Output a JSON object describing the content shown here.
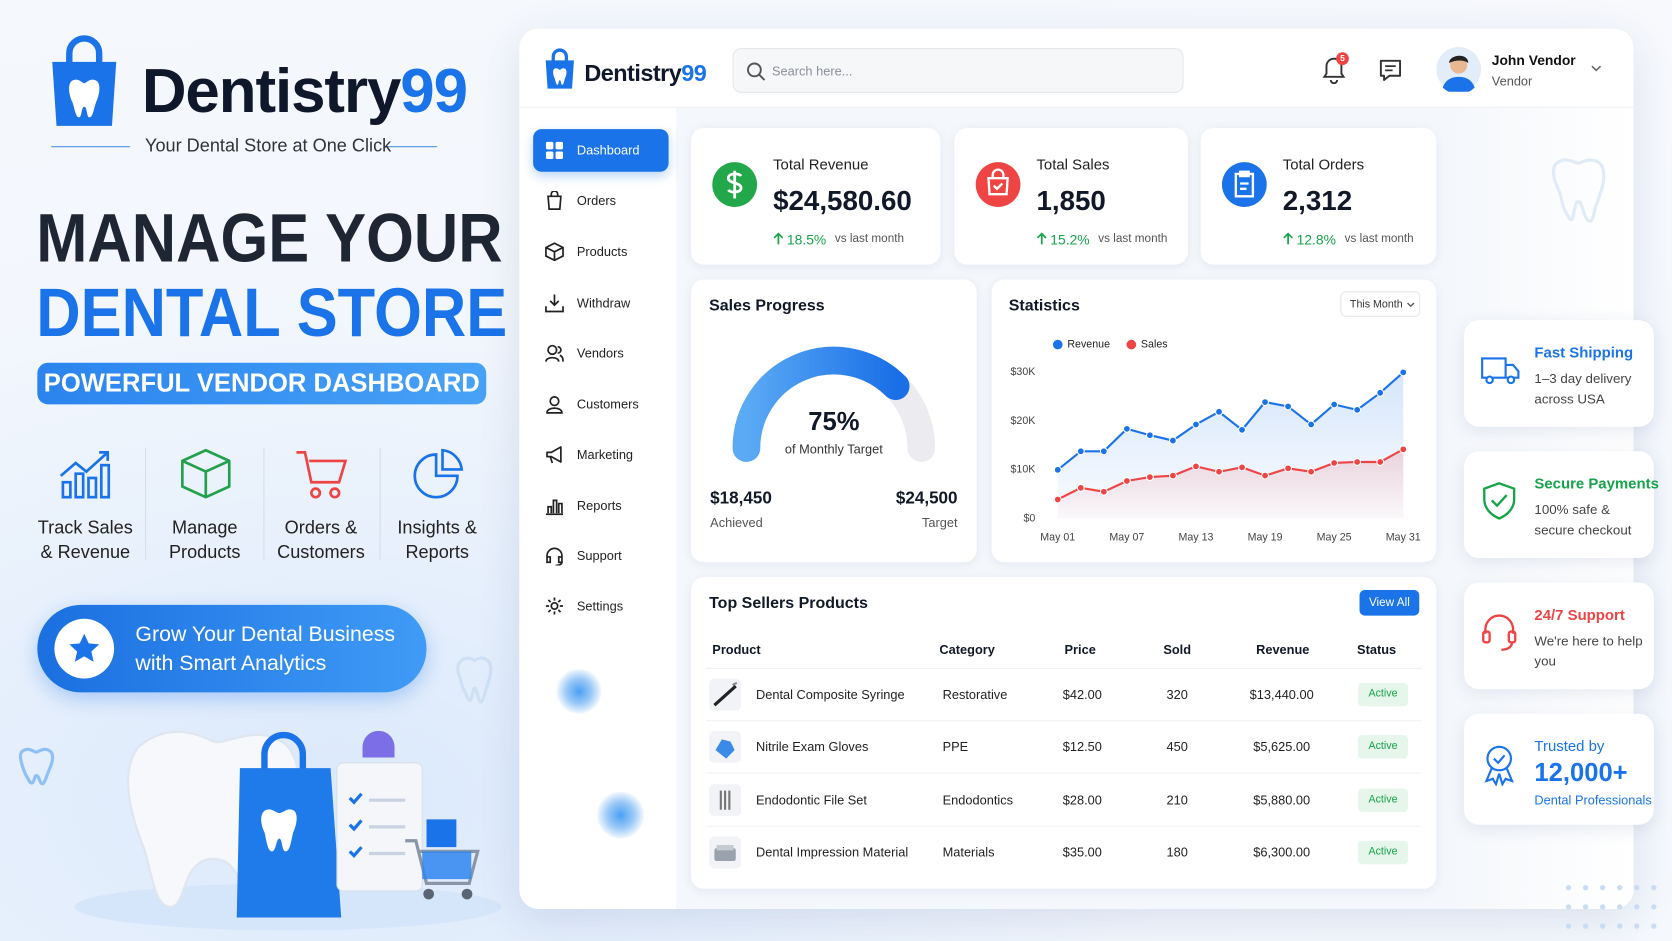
{
  "brand": {
    "name": "Dentistry",
    "suffix": "99",
    "tagline": "Your Dental Store at One Click"
  },
  "hero": {
    "line1": "MANAGE YOUR",
    "line2": "DENTAL STORE",
    "badge": "POWERFUL VENDOR DASHBOARD"
  },
  "features": [
    [
      "Track Sales",
      "& Revenue"
    ],
    [
      "Manage",
      "Products"
    ],
    [
      "Orders &",
      "Customers"
    ],
    [
      "Insights &",
      "Reports"
    ]
  ],
  "cta": [
    "Grow Your Dental Business",
    "with Smart Analytics"
  ],
  "dashboard": {
    "brand": {
      "name": "Dentistry",
      "suffix": "99"
    },
    "search_placeholder": "Search here...",
    "notifications": "5",
    "user": {
      "name": "John Vendor",
      "role": "Vendor"
    },
    "nav": [
      "Dashboard",
      "Orders",
      "Products",
      "Withdraw",
      "Vendors",
      "Customers",
      "Marketing",
      "Reports",
      "Support",
      "Settings"
    ],
    "stats": [
      {
        "title": "Total Revenue",
        "value": "$24,580.60",
        "change": "18.5%",
        "compare": "vs last month"
      },
      {
        "title": "Total Sales",
        "value": "1,850",
        "change": "15.2%",
        "compare": "vs last month"
      },
      {
        "title": "Total Orders",
        "value": "2,312",
        "change": "12.8%",
        "compare": "vs last month"
      }
    ],
    "sales_progress": {
      "title": "Sales Progress",
      "value": 75,
      "value_label": "75%",
      "caption": "of Monthly Target",
      "achieved": "$18,450",
      "achieved_label": "Achieved",
      "target": "$24,500",
      "target_label": "Target"
    },
    "statistics": {
      "type": "line",
      "title": "Statistics",
      "filter": "This Month",
      "categories": [
        "May 01",
        null,
        null,
        "May 07",
        null,
        null,
        "May 13",
        null,
        null,
        "May 19",
        null,
        null,
        "May 25",
        null,
        null,
        "May 31"
      ],
      "series": [
        {
          "name": "Revenue",
          "color": "#1a73e8",
          "values": [
            10000,
            13800,
            13800,
            18400,
            17100,
            16000,
            19300,
            21900,
            18200,
            23900,
            23000,
            19300,
            23400,
            22300,
            25800,
            30000
          ]
        },
        {
          "name": "Sales",
          "color": "#ef4444",
          "values": [
            3900,
            6300,
            5500,
            7700,
            8500,
            8800,
            10700,
            9600,
            10500,
            8800,
            10300,
            9600,
            11400,
            11600,
            11600,
            14200
          ]
        }
      ],
      "ylim": [
        0,
        30000
      ],
      "yticks": [
        {
          "value": 0,
          "label": "$0"
        },
        {
          "value": 10000,
          "label": "$10K"
        },
        {
          "value": 20000,
          "label": "$20K"
        },
        {
          "value": 30000,
          "label": "$30K"
        }
      ]
    },
    "top_sellers": {
      "title": "Top Sellers Products",
      "action": "View All",
      "columns": [
        "Product",
        "Category",
        "Price",
        "Sold",
        "Revenue",
        "Status"
      ],
      "rows": [
        [
          "Dental Composite Syringe",
          "Restorative",
          "$42.00",
          "320",
          "$13,440.00",
          "Active"
        ],
        [
          "Nitrile Exam Gloves",
          "PPE",
          "$12.50",
          "450",
          "$5,625.00",
          "Active"
        ],
        [
          "Endodontic File Set",
          "Endodontics",
          "$28.00",
          "210",
          "$5,880.00",
          "Active"
        ],
        [
          "Dental Impression Material",
          "Materials",
          "$35.00",
          "180",
          "$6,300.00",
          "Active"
        ]
      ]
    }
  },
  "highlights": [
    {
      "title": "Fast Shipping",
      "text": "1–3 day delivery across USA"
    },
    {
      "title": "Secure Payments",
      "text": "100% safe & secure checkout"
    },
    {
      "title": "24/7 Support",
      "text": "We're here to help you"
    },
    {
      "title": "Trusted by",
      "value": "12,000+",
      "text": "Dental Professionals"
    }
  ]
}
